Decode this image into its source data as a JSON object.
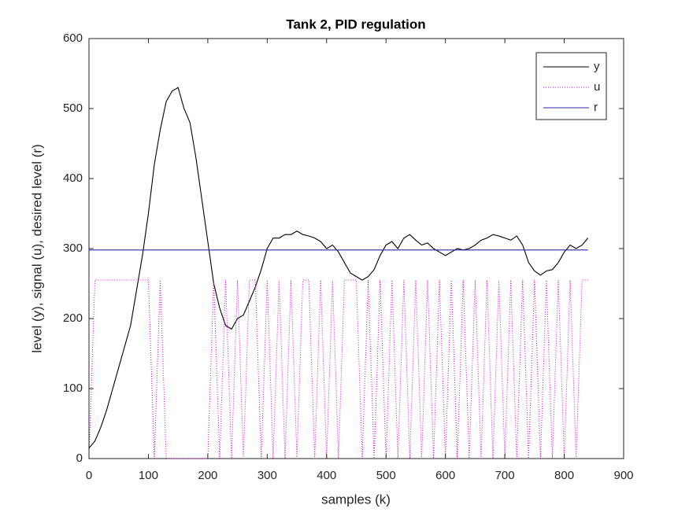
{
  "chart_data": {
    "type": "line",
    "title": "Tank 2, PID regulation",
    "xlabel": "samples (k)",
    "ylabel": "level (y), signal (u), desired level (r)",
    "x": [
      0,
      10,
      20,
      30,
      40,
      50,
      60,
      70,
      80,
      90,
      100,
      110,
      120,
      130,
      140,
      150,
      160,
      170,
      180,
      190,
      200,
      210,
      220,
      230,
      240,
      250,
      260,
      270,
      280,
      290,
      300,
      310,
      320,
      330,
      340,
      350,
      360,
      370,
      380,
      390,
      400,
      410,
      420,
      430,
      440,
      450,
      460,
      470,
      480,
      490,
      500,
      510,
      520,
      530,
      540,
      550,
      560,
      570,
      580,
      590,
      600,
      610,
      620,
      630,
      640,
      650,
      660,
      670,
      680,
      690,
      700,
      710,
      720,
      730,
      740,
      750,
      760,
      770,
      780,
      790,
      800,
      810,
      820,
      830,
      840
    ],
    "series": [
      {
        "name": "y",
        "color": "#000000",
        "dash": "solid",
        "values": [
          15,
          25,
          45,
          70,
          100,
          130,
          160,
          190,
          240,
          290,
          350,
          420,
          470,
          510,
          525,
          530,
          500,
          480,
          430,
          370,
          310,
          250,
          215,
          190,
          185,
          200,
          205,
          225,
          245,
          270,
          300,
          315,
          315,
          320,
          320,
          325,
          320,
          318,
          315,
          310,
          300,
          305,
          295,
          280,
          265,
          260,
          255,
          260,
          270,
          290,
          305,
          310,
          300,
          315,
          320,
          312,
          305,
          308,
          300,
          295,
          290,
          295,
          300,
          298,
          300,
          305,
          312,
          315,
          320,
          318,
          315,
          312,
          318,
          305,
          280,
          268,
          262,
          268,
          270,
          280,
          295,
          305,
          300,
          305,
          315
        ]
      },
      {
        "name": "u",
        "color": "#d400d4",
        "dash": "dotted",
        "values": [
          0,
          255,
          255,
          255,
          255,
          255,
          255,
          255,
          255,
          255,
          255,
          0,
          255,
          0,
          0,
          0,
          0,
          0,
          0,
          0,
          0,
          255,
          0,
          255,
          0,
          255,
          0,
          255,
          255,
          0,
          255,
          0,
          255,
          0,
          255,
          0,
          255,
          255,
          0,
          255,
          0,
          255,
          0,
          255,
          255,
          255,
          0,
          255,
          0,
          255,
          0,
          255,
          0,
          255,
          0,
          255,
          0,
          255,
          0,
          255,
          0,
          255,
          0,
          255,
          0,
          255,
          0,
          255,
          0,
          255,
          0,
          255,
          0,
          255,
          0,
          255,
          0,
          255,
          0,
          255,
          0,
          255,
          0,
          255,
          255
        ]
      },
      {
        "name": "r",
        "color": "#2b2ba8",
        "dash": "solid",
        "values": [
          298,
          298,
          298,
          298,
          298,
          298,
          298,
          298,
          298,
          298,
          298,
          298,
          298,
          298,
          298,
          298,
          298,
          298,
          298,
          298,
          298,
          298,
          298,
          298,
          298,
          298,
          298,
          298,
          298,
          298,
          298,
          298,
          298,
          298,
          298,
          298,
          298,
          298,
          298,
          298,
          298,
          298,
          298,
          298,
          298,
          298,
          298,
          298,
          298,
          298,
          298,
          298,
          298,
          298,
          298,
          298,
          298,
          298,
          298,
          298,
          298,
          298,
          298,
          298,
          298,
          298,
          298,
          298,
          298,
          298,
          298,
          298,
          298,
          298,
          298,
          298,
          298,
          298,
          298,
          298,
          298,
          298,
          298,
          298,
          298
        ]
      }
    ],
    "xlim": [
      0,
      900
    ],
    "xticks": [
      0,
      100,
      200,
      300,
      400,
      500,
      600,
      700,
      800,
      900
    ],
    "ylim": [
      0,
      600
    ],
    "yticks": [
      0,
      100,
      200,
      300,
      400,
      500,
      600
    ],
    "legend": "northeast"
  }
}
